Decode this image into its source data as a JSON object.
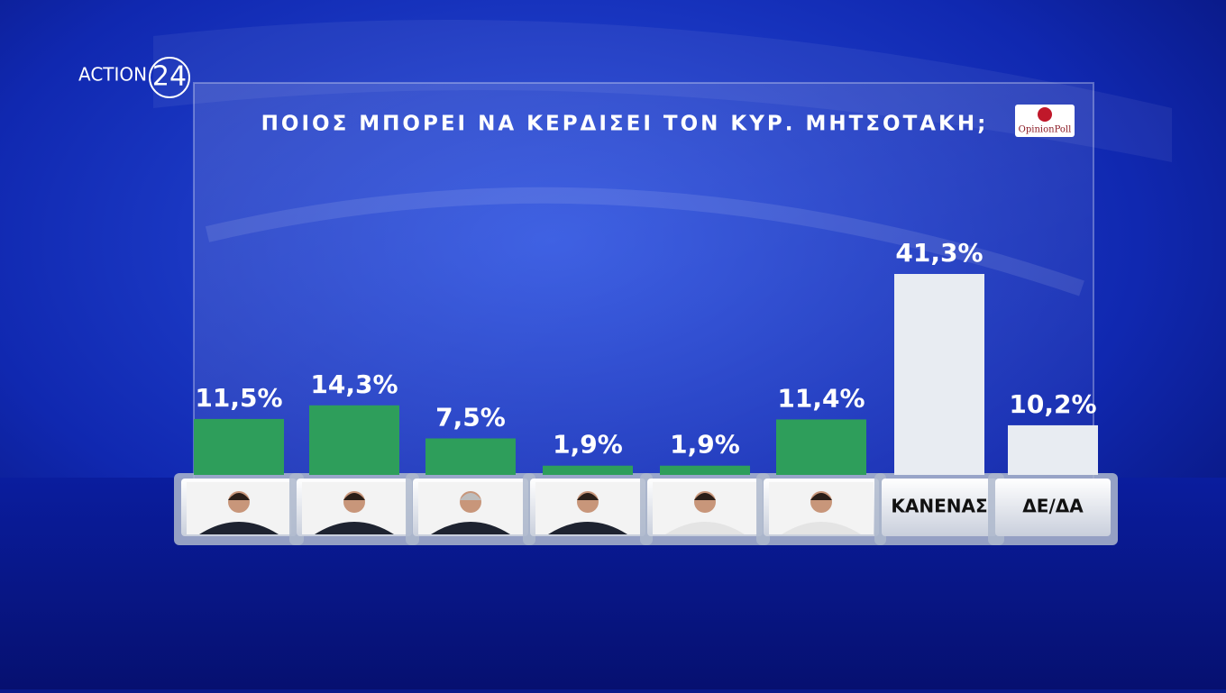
{
  "chart_data": {
    "type": "bar",
    "title": "ΠΟΙΟΣ ΜΠΟΡΕΙ ΝΑ ΚΕΡΔΙΣΕΙ ΤΟΝ ΚΥΡ. ΜΗΤΣΟΤΑΚΗ;",
    "categories": [
      null,
      null,
      null,
      null,
      null,
      null,
      "ΚΑΝΕΝΑΣ",
      "ΔΕ/ΔΑ"
    ],
    "values": [
      11.5,
      14.3,
      7.5,
      1.9,
      1.9,
      11.4,
      41.3,
      10.2
    ],
    "value_labels": [
      "11,5%",
      "14,3%",
      "7,5%",
      "1,9%",
      "1,9%",
      "11,4%",
      "41,3%",
      "10,2%"
    ],
    "colors": [
      "#2e9e5b",
      "#2e9e5b",
      "#2e9e5b",
      "#2e9e5b",
      "#2e9e5b",
      "#2e9e5b",
      "#e8ecf2",
      "#e8ecf2"
    ]
  },
  "branding": {
    "channel": "ACTION",
    "channel_number": "24",
    "pollster": "OpinionPoll"
  }
}
